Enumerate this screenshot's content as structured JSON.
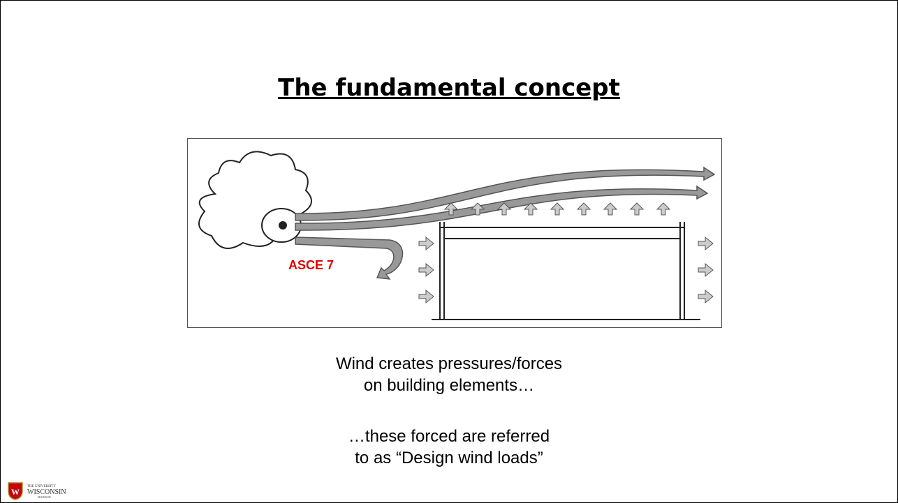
{
  "title": "The fundamental concept",
  "figure": {
    "label": "ASCE 7"
  },
  "body": {
    "paragraphs": [
      [
        "Wind creates pressures/forces",
        "on building elements…"
      ],
      [
        "…these forced are referred",
        "to as “Design wind loads”"
      ]
    ]
  },
  "footer": {
    "logo_top": "THE UNIVERSITY",
    "logo_main": "WISCONSIN",
    "logo_bottom": "MADISON"
  }
}
